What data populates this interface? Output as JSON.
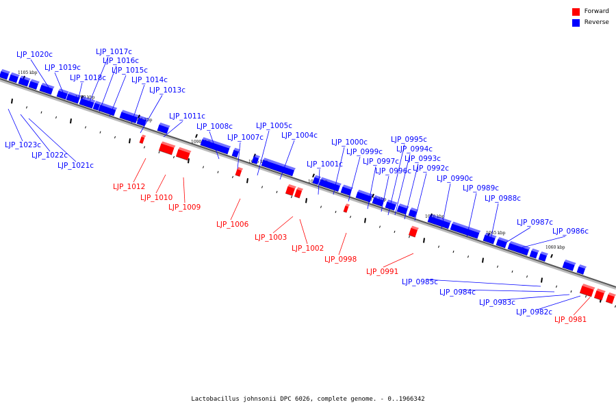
{
  "legend": [
    {
      "label": "Forward",
      "color": "#ff0000"
    },
    {
      "label": "Reverse",
      "color": "#0000ff"
    }
  ],
  "caption": "Lactobacillus johnsonii DPC 6026, complete genome. - 0..1966342",
  "ticks": [
    "1105 kbp",
    "1100 kbp",
    "1095 kbp",
    "1090 kbp",
    "1085 kbp",
    "1080 kbp",
    "1075 kbp",
    "1070 kbp",
    "1065 kbp",
    "1060 kbp"
  ],
  "genes": [
    {
      "name": "LJP_1023c",
      "strand": "reverse"
    },
    {
      "name": "LJP_1022c",
      "strand": "reverse"
    },
    {
      "name": "LJP_1021c",
      "strand": "reverse"
    },
    {
      "name": "LJP_1020c",
      "strand": "reverse"
    },
    {
      "name": "LJP_1019c",
      "strand": "reverse"
    },
    {
      "name": "LJP_1018c",
      "strand": "reverse"
    },
    {
      "name": "LJP_1017c",
      "strand": "reverse"
    },
    {
      "name": "LJP_1016c",
      "strand": "reverse"
    },
    {
      "name": "LJP_1015c",
      "strand": "reverse"
    },
    {
      "name": "LJP_1014c",
      "strand": "reverse"
    },
    {
      "name": "LJP_1013c",
      "strand": "reverse"
    },
    {
      "name": "LJP_1012",
      "strand": "forward"
    },
    {
      "name": "LJP_1011c",
      "strand": "reverse"
    },
    {
      "name": "LJP_1010",
      "strand": "forward"
    },
    {
      "name": "LJP_1009",
      "strand": "forward"
    },
    {
      "name": "LJP_1008c",
      "strand": "reverse"
    },
    {
      "name": "LJP_1007c",
      "strand": "reverse"
    },
    {
      "name": "LJP_1006",
      "strand": "forward"
    },
    {
      "name": "LJP_1005c",
      "strand": "reverse"
    },
    {
      "name": "LJP_1004c",
      "strand": "reverse"
    },
    {
      "name": "LJP_1003",
      "strand": "forward"
    },
    {
      "name": "LJP_1002",
      "strand": "forward"
    },
    {
      "name": "LJP_1001c",
      "strand": "reverse"
    },
    {
      "name": "LJP_1000c",
      "strand": "reverse"
    },
    {
      "name": "LJP_0999c",
      "strand": "reverse"
    },
    {
      "name": "LJP_0998",
      "strand": "forward"
    },
    {
      "name": "LJP_0997c",
      "strand": "reverse"
    },
    {
      "name": "LJP_0996c",
      "strand": "reverse"
    },
    {
      "name": "LJP_0995c",
      "strand": "reverse"
    },
    {
      "name": "LJP_0994c",
      "strand": "reverse"
    },
    {
      "name": "LJP_0993c",
      "strand": "reverse"
    },
    {
      "name": "LJP_0992c",
      "strand": "reverse"
    },
    {
      "name": "LJP_0991",
      "strand": "forward"
    },
    {
      "name": "LJP_0990c",
      "strand": "reverse"
    },
    {
      "name": "LJP_0989c",
      "strand": "reverse"
    },
    {
      "name": "LJP_0988c",
      "strand": "reverse"
    },
    {
      "name": "LJP_0987c",
      "strand": "reverse"
    },
    {
      "name": "LJP_0986c",
      "strand": "reverse"
    },
    {
      "name": "LJP_0985c",
      "strand": "reverse"
    },
    {
      "name": "LJP_0984c",
      "strand": "reverse"
    },
    {
      "name": "LJP_0983c",
      "strand": "reverse"
    },
    {
      "name": "LJP_0982c",
      "strand": "reverse"
    },
    {
      "name": "LJP_0981",
      "strand": "forward"
    }
  ]
}
